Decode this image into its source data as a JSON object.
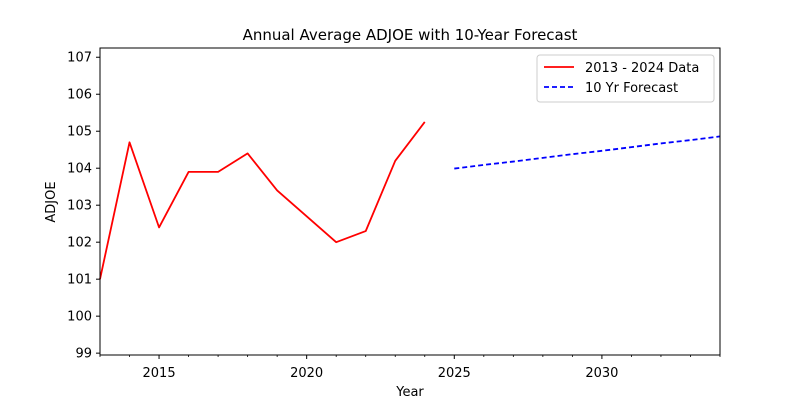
{
  "chart_data": {
    "type": "line",
    "title": "Annual Average ADJOE with 10-Year Forecast",
    "xlabel": "Year",
    "ylabel": "ADJOE",
    "xlim": [
      2013,
      2034
    ],
    "ylim": [
      98.95,
      107.25
    ],
    "grid": false,
    "legend_position": "top-right",
    "x_ticks": [
      2015,
      2020,
      2025,
      2030
    ],
    "x_minor_ticks": [
      2013,
      2014,
      2016,
      2017,
      2018,
      2019,
      2021,
      2022,
      2023,
      2024,
      2026,
      2027,
      2028,
      2029,
      2031,
      2032,
      2033,
      2034
    ],
    "y_ticks": [
      99,
      100,
      101,
      102,
      103,
      104,
      105,
      106,
      107
    ],
    "series": [
      {
        "name": "2013 - 2024 Data",
        "color": "#ff0000",
        "style": "solid",
        "x": [
          2013,
          2014,
          2015,
          2016,
          2017,
          2018,
          2019,
          2020,
          2021,
          2022,
          2023,
          2024
        ],
        "values": [
          101.0,
          104.7,
          102.4,
          103.9,
          103.9,
          104.4,
          103.4,
          102.7,
          102.0,
          102.3,
          104.2,
          105.25
        ]
      },
      {
        "name": "10 Yr Forecast",
        "color": "#0000ff",
        "style": "dashed",
        "x": [
          2025,
          2026,
          2027,
          2028,
          2029,
          2030,
          2031,
          2032,
          2033,
          2034
        ],
        "values": [
          103.99,
          104.09,
          104.18,
          104.28,
          104.38,
          104.47,
          104.57,
          104.67,
          104.76,
          104.86
        ]
      }
    ]
  }
}
